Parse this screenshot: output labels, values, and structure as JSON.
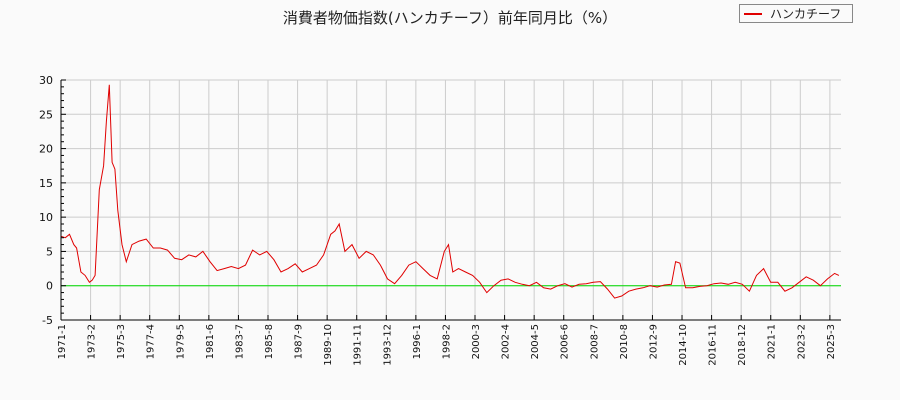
{
  "title": "消費者物価指数(ハンカチーフ）前年同月比（%）",
  "legend": {
    "label": "ハンカチーフ",
    "color": "#e00000"
  },
  "colors": {
    "series": "#e00000",
    "zero_line": "#00dd00",
    "grid": "#cccccc",
    "axis": "#000000",
    "background": "#fafafa"
  },
  "chart_data": {
    "type": "line",
    "title": "消費者物価指数(ハンカチーフ）前年同月比（%）",
    "xlabel": "",
    "ylabel": "",
    "ylim": [
      -5,
      30
    ],
    "yticks": [
      -5,
      0,
      5,
      10,
      15,
      20,
      25,
      30
    ],
    "grid": true,
    "legend_position": "top-right",
    "x_tick_labels": [
      "1971-1",
      "1973-2",
      "1975-3",
      "1977-4",
      "1979-5",
      "1981-6",
      "1983-7",
      "1985-8",
      "1987-9",
      "1989-10",
      "1991-11",
      "1993-12",
      "1996-1",
      "1998-2",
      "2000-3",
      "2002-4",
      "2004-5",
      "2006-6",
      "2008-7",
      "2010-8",
      "2012-9",
      "2014-10",
      "2016-11",
      "2018-12",
      "2021-1",
      "2023-2",
      "2025-3"
    ],
    "series": [
      {
        "name": "ハンカチーフ",
        "x": [
          1971.0,
          1971.3,
          1971.6,
          1971.9,
          1972.1,
          1972.4,
          1972.7,
          1973.0,
          1973.2,
          1973.4,
          1973.7,
          1974.0,
          1974.2,
          1974.4,
          1974.6,
          1974.8,
          1975.0,
          1975.3,
          1975.6,
          1976.0,
          1976.5,
          1977.0,
          1977.5,
          1978.0,
          1978.5,
          1979.0,
          1979.5,
          1980.0,
          1980.5,
          1981.0,
          1981.5,
          1982.0,
          1982.5,
          1983.0,
          1983.5,
          1984.0,
          1984.5,
          1985.0,
          1985.5,
          1986.0,
          1986.5,
          1987.0,
          1987.5,
          1988.0,
          1988.5,
          1989.0,
          1989.5,
          1990.0,
          1990.3,
          1990.6,
          1991.0,
          1991.5,
          1992.0,
          1992.5,
          1993.0,
          1993.5,
          1994.0,
          1994.5,
          1995.0,
          1995.5,
          1996.0,
          1996.5,
          1997.0,
          1997.5,
          1998.0,
          1998.3,
          1998.6,
          1999.0,
          1999.5,
          2000.0,
          2000.5,
          2001.0,
          2001.5,
          2002.0,
          2002.5,
          2003.0,
          2003.5,
          2004.0,
          2004.5,
          2005.0,
          2005.5,
          2006.0,
          2006.5,
          2007.0,
          2007.5,
          2008.0,
          2008.5,
          2009.0,
          2009.5,
          2010.0,
          2010.5,
          2011.0,
          2011.5,
          2012.0,
          2012.5,
          2013.0,
          2013.5,
          2014.0,
          2014.3,
          2014.6,
          2015.0,
          2015.5,
          2016.0,
          2016.5,
          2017.0,
          2017.5,
          2018.0,
          2018.5,
          2019.0,
          2019.5,
          2020.0,
          2020.5,
          2021.0,
          2021.5,
          2022.0,
          2022.5,
          2023.0,
          2023.5,
          2024.0,
          2024.5,
          2025.0,
          2025.5,
          2025.8
        ],
        "values": [
          7.2,
          7.0,
          7.5,
          6.0,
          5.5,
          2.0,
          1.5,
          0.5,
          0.8,
          1.5,
          14.0,
          17.5,
          24.0,
          29.3,
          18.0,
          17.0,
          11.0,
          6.0,
          3.5,
          6.0,
          6.5,
          6.8,
          5.5,
          5.5,
          5.2,
          4.0,
          3.8,
          4.5,
          4.2,
          5.0,
          3.5,
          2.2,
          2.5,
          2.8,
          2.5,
          3.0,
          5.2,
          4.5,
          5.0,
          3.8,
          2.0,
          2.5,
          3.2,
          2.0,
          2.5,
          3.0,
          4.5,
          7.5,
          8.0,
          9.0,
          5.0,
          6.0,
          4.0,
          5.0,
          4.5,
          3.0,
          1.0,
          0.3,
          1.5,
          3.0,
          3.5,
          2.5,
          1.5,
          1.0,
          5.0,
          6.0,
          2.0,
          2.5,
          2.0,
          1.5,
          0.5,
          -1.0,
          0.0,
          0.8,
          1.0,
          0.5,
          0.2,
          0.0,
          0.5,
          -0.3,
          -0.5,
          0.0,
          0.3,
          -0.2,
          0.2,
          0.3,
          0.5,
          0.6,
          -0.5,
          -1.8,
          -1.5,
          -0.8,
          -0.5,
          -0.3,
          0.0,
          -0.2,
          0.1,
          0.2,
          3.5,
          3.3,
          -0.3,
          -0.3,
          -0.1,
          0.0,
          0.3,
          0.4,
          0.2,
          0.5,
          0.2,
          -0.8,
          1.5,
          2.5,
          0.5,
          0.5,
          -0.8,
          -0.3,
          0.5,
          1.3,
          0.8,
          0.0,
          1.0,
          1.8,
          1.5
        ],
        "color": "#e00000"
      }
    ],
    "reference_lines": [
      {
        "y": 0,
        "color": "#00dd00"
      }
    ]
  }
}
